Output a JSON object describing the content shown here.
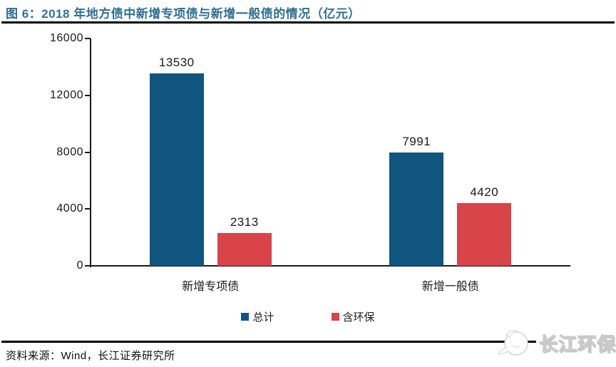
{
  "figure": {
    "title": "图 6：2018 年地方债中新增专项债与新增一般债的情况（亿元）"
  },
  "chart_data": {
    "type": "bar",
    "title": "2018 年地方债中新增专项债与新增一般债的情况（亿元）",
    "categories": [
      "新增专项债",
      "新增一般债"
    ],
    "series": [
      {
        "name": "总计",
        "color": "#10557F",
        "values": [
          13530,
          7991
        ]
      },
      {
        "name": "含环保",
        "color": "#D8444A",
        "values": [
          2313,
          4420
        ]
      }
    ],
    "ylim": [
      0,
      16000
    ],
    "yticks": [
      0,
      4000,
      8000,
      12000,
      16000
    ],
    "grid": false,
    "legend_position": "bottom",
    "data_labels": true
  },
  "footer": {
    "source": "资料来源：Wind，长江证券研究所",
    "brand": "长江环保"
  },
  "colors": {
    "title": "#2F7090",
    "axis": "#1a1a1a",
    "rule": "#000000"
  }
}
